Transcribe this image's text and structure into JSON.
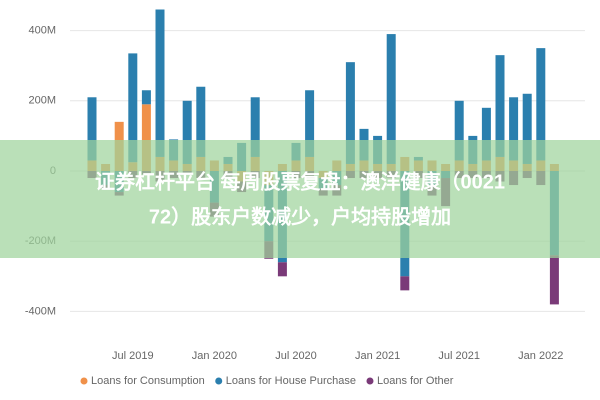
{
  "chart_data": {
    "type": "bar",
    "stacked": true,
    "categories": [
      null,
      null,
      null,
      "Jul 2019",
      null,
      null,
      null,
      null,
      null,
      "Jan 2020",
      null,
      null,
      null,
      null,
      null,
      "Jul 2020",
      null,
      null,
      null,
      null,
      null,
      "Jan 2021",
      null,
      null,
      null,
      null,
      null,
      "Jul 2021",
      null,
      null,
      null,
      null,
      null,
      "Jan 2022",
      null
    ],
    "series": [
      {
        "name": "Loans for Consumption",
        "color": "#f0914a",
        "values": [
          30,
          20,
          140,
          25,
          190,
          40,
          30,
          20,
          40,
          30,
          20,
          -30,
          40,
          -40,
          20,
          30,
          40,
          -20,
          30,
          20,
          30,
          20,
          20,
          40,
          30,
          30,
          20,
          30,
          20,
          30,
          40,
          30,
          20,
          30,
          20
        ]
      },
      {
        "name": "Loans for House Purchase",
        "color": "#2b7fae",
        "values": [
          180,
          -40,
          -60,
          310,
          40,
          420,
          60,
          180,
          200,
          -90,
          20,
          80,
          170,
          -160,
          -260,
          50,
          190,
          -30,
          -40,
          290,
          90,
          80,
          370,
          -300,
          10,
          -40,
          -20,
          170,
          80,
          150,
          290,
          180,
          200,
          320,
          -240
        ]
      },
      {
        "name": "Loans for Other",
        "color": "#7a3a78",
        "values": [
          -20,
          -10,
          -10,
          -20,
          -10,
          -30,
          -20,
          -10,
          -20,
          -40,
          -20,
          -30,
          -20,
          -50,
          -40,
          -20,
          -20,
          -20,
          -30,
          -20,
          -20,
          -20,
          -20,
          -40,
          -20,
          -30,
          -80,
          -20,
          -20,
          -20,
          -30,
          -40,
          -20,
          -40,
          -140
        ]
      }
    ],
    "ylim": [
      -470,
      470
    ],
    "yticks": [
      {
        "value": 400,
        "label": "400M"
      },
      {
        "value": 200,
        "label": "200M"
      },
      0,
      {
        "value": -200,
        "label": "-200M"
      },
      {
        "value": -400,
        "label": "-400M"
      }
    ],
    "grid": true,
    "legend": "bottom",
    "annotations": [
      "证券杠杆平台 每周股票复盘：澳洋健康（0021",
      "72）股东户数减少，户均持股增加"
    ]
  }
}
